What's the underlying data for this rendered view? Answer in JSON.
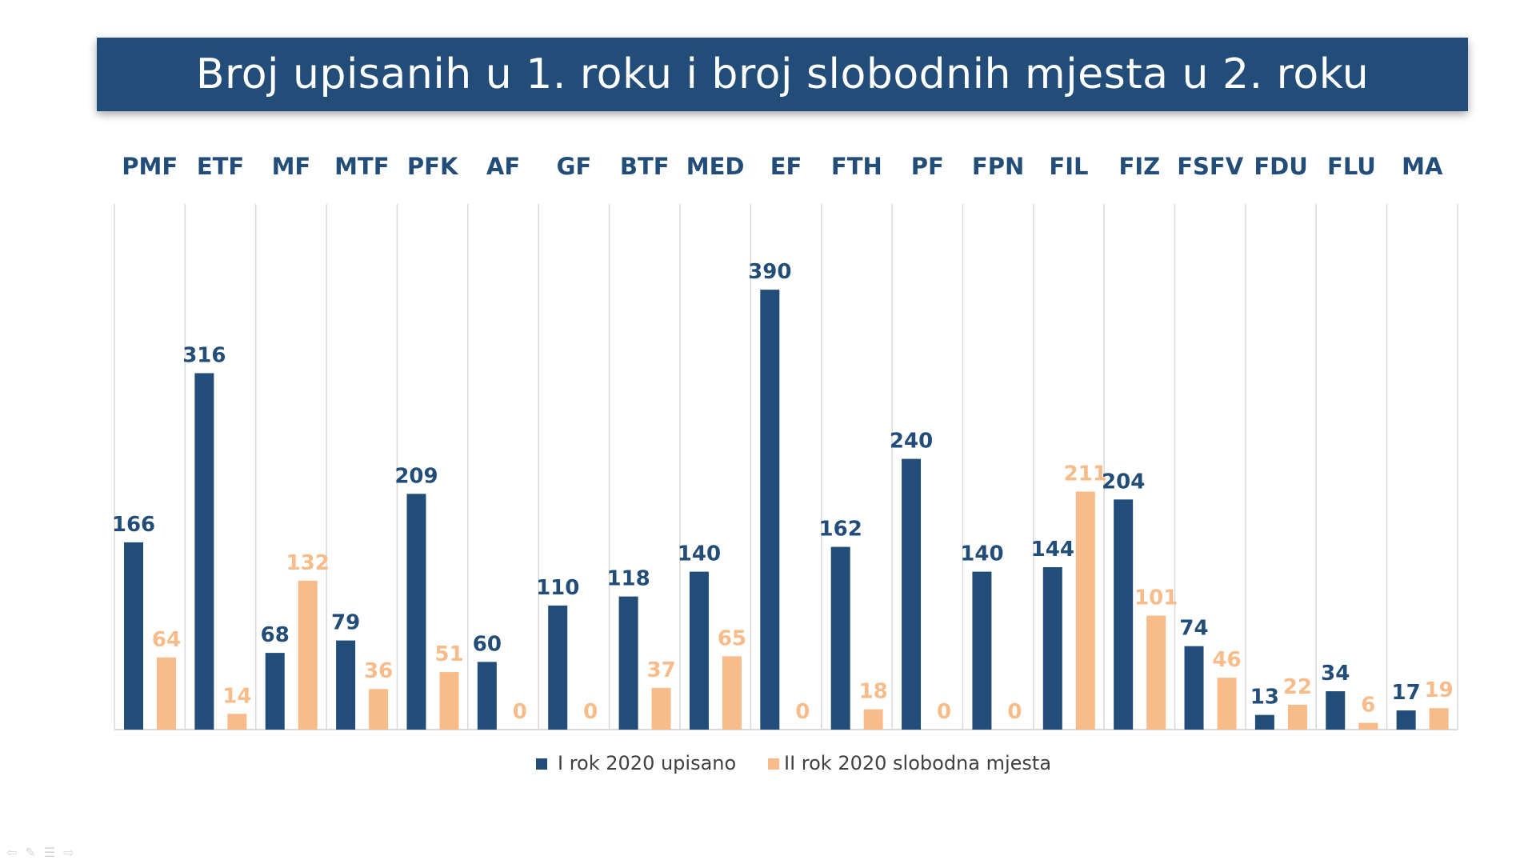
{
  "title": "Broj upisanih u 1. roku i broj slobodnih mjesta u 2. roku",
  "colors": {
    "series1": "#234d79",
    "series2": "#f8bc8a",
    "title_bg": "#234d79",
    "grid": "#d9d9d9"
  },
  "nav_icons": [
    "back-arrow-icon",
    "pen-icon",
    "menu-icon",
    "forward-arrow-icon"
  ],
  "chart_data": {
    "type": "bar",
    "title": "Broj upisanih u 1. roku i broj slobodnih mjesta u 2. roku",
    "categories": [
      "PMF",
      "ETF",
      "MF",
      "MTF",
      "PFK",
      "AF",
      "GF",
      "BTF",
      "MED",
      "EF",
      "FTH",
      "PF",
      "FPN",
      "FIL",
      "FIZ",
      "FSFV",
      "FDU",
      "FLU",
      "MA"
    ],
    "series": [
      {
        "name": "I rok 2020 upisano",
        "values": [
          166,
          316,
          68,
          79,
          209,
          60,
          110,
          118,
          140,
          390,
          162,
          240,
          140,
          144,
          204,
          74,
          13,
          34,
          17
        ]
      },
      {
        "name": "II rok 2020 slobodna mjesta",
        "values": [
          64,
          14,
          132,
          36,
          51,
          0,
          0,
          37,
          65,
          0,
          18,
          0,
          0,
          211,
          101,
          46,
          22,
          6,
          19
        ]
      }
    ],
    "ylim": [
      0,
      450
    ],
    "grid": "vertical-separators",
    "legend_position": "bottom-center",
    "categories_position": "top"
  }
}
